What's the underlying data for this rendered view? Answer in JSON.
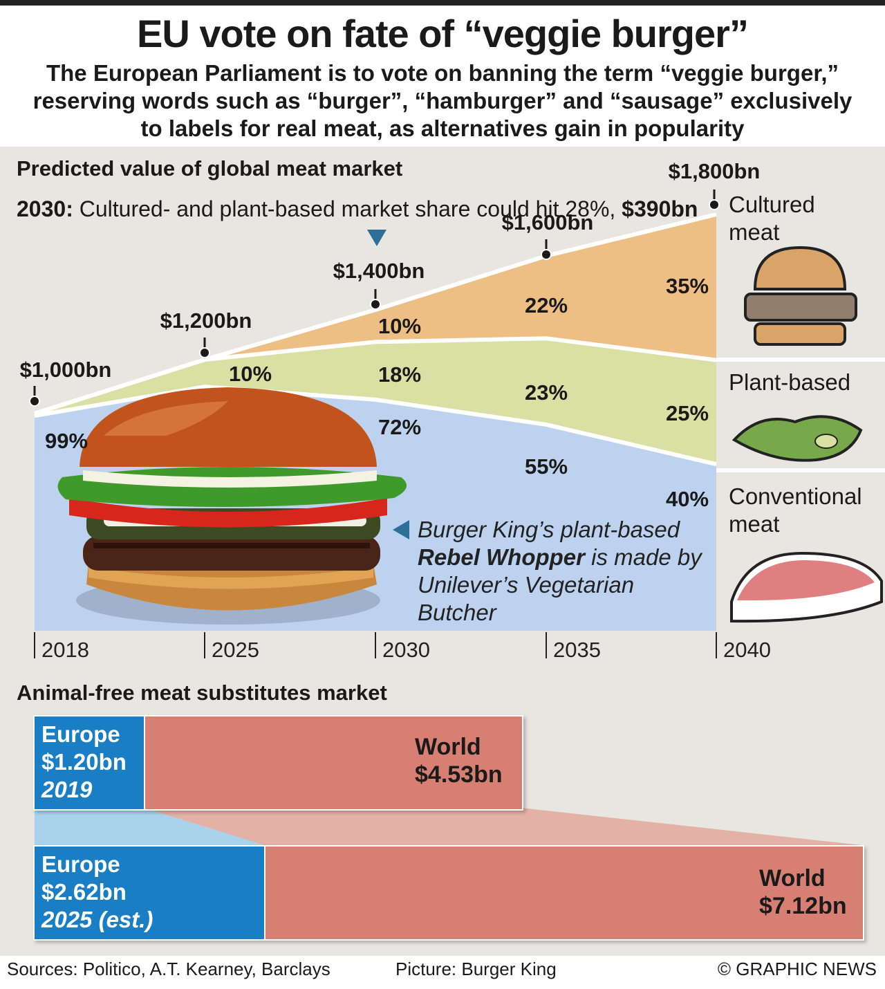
{
  "title": "EU vote on fate of “veggie burger”",
  "subtitle": "The European Parliament is to vote on banning the term “veggie burger,” reserving words such as “burger”, “hamburger” and “sausage” exclusively to labels for real meat, as alternatives gain in popularity",
  "market_section_title": "Predicted value of global meat market",
  "note": {
    "bold": "2030:",
    "text": " Cultured- and plant-based market share could hit 28%, ",
    "value": "$390bn"
  },
  "caption": {
    "line1": "Burger King’s plant-based",
    "bold": "Rebel Whopper",
    "rest": " is made by Unilever’s Vegetarian Butcher"
  },
  "legend": {
    "cultured": "Cultured meat",
    "plant": "Plant-based",
    "conventional": "Conventional meat"
  },
  "substitutes_section_title": "Animal-free meat substitutes market",
  "bars": [
    {
      "europe_label": "Europe",
      "europe_value": "$1.20bn",
      "year": "2019",
      "world_label": "World",
      "world_value": "$4.53bn"
    },
    {
      "europe_label": "Europe",
      "europe_value": "$2.62bn",
      "year": "2025 (est.)",
      "world_label": "World",
      "world_value": "$7.12bn"
    }
  ],
  "footer": {
    "sources": "Sources: Politico, A.T. Kearney, Barclays",
    "picture": "Picture: Burger King",
    "credit": "© GRAPHIC NEWS"
  },
  "colors": {
    "cultured": "#eebf85",
    "plant": "#d8e1a3",
    "conventional": "#bcd2ef",
    "europe": "#1a7ec5",
    "world": "#d67f72",
    "panel": "#e8e6e1"
  },
  "icons": [
    "burger-photo",
    "burger-icon",
    "soybean-icon",
    "steak-icon"
  ],
  "chart_data": [
    {
      "type": "area",
      "title": "Predicted value of global meat market",
      "x": [
        "2018",
        "2025",
        "2030",
        "2035",
        "2040"
      ],
      "total_labels": [
        "$1,000bn",
        "$1,200bn",
        "$1,400bn",
        "$1,600bn",
        "$1,800bn"
      ],
      "totals": [
        1000,
        1200,
        1400,
        1600,
        1800
      ],
      "series": [
        {
          "name": "Conventional meat",
          "values": [
            99,
            90,
            72,
            55,
            40
          ],
          "labels": [
            "99%",
            "",
            "72%",
            "55%",
            "40%"
          ]
        },
        {
          "name": "Plant-based",
          "values": [
            1,
            10,
            18,
            23,
            25
          ],
          "labels": [
            "",
            "10%",
            "18%",
            "23%",
            "25%"
          ]
        },
        {
          "name": "Cultured meat",
          "values": [
            0,
            0,
            10,
            22,
            35
          ],
          "labels": [
            "",
            "",
            "10%",
            "22%",
            "35%"
          ]
        }
      ]
    },
    {
      "type": "bar",
      "title": "Animal-free meat substitutes market",
      "categories": [
        "2019",
        "2025 (est.)"
      ],
      "series": [
        {
          "name": "Europe",
          "values": [
            1.2,
            2.62
          ]
        },
        {
          "name": "World",
          "values": [
            4.53,
            7.12
          ]
        }
      ]
    }
  ]
}
